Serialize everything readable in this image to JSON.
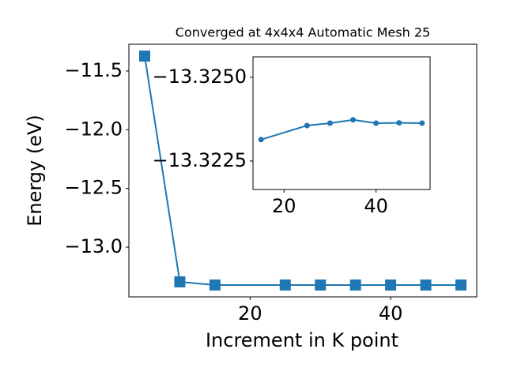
{
  "chart_data": [
    {
      "type": "line",
      "title": "Converged at 4x4x4 Automatic Mesh 25",
      "x_label": "Increment in K point",
      "y_label": "Energy (eV)",
      "x": [
        5,
        10,
        15,
        25,
        30,
        35,
        40,
        45,
        50
      ],
      "series": [
        {
          "color": "#1f77b4",
          "values": [
            -11.373,
            -13.295,
            -13.322,
            -13.322,
            -13.322,
            -13.322,
            -13.322,
            -13.322,
            -13.322
          ]
        }
      ],
      "xlim": [
        2.75,
        52.25
      ],
      "ylim": [
        -13.423,
        -11.272
      ],
      "xticks": [
        20,
        40
      ],
      "yticks": [
        {
          "value": -11.5,
          "label": "−11.5"
        },
        {
          "value": -12.0,
          "label": "−12.0"
        },
        {
          "value": -12.5,
          "label": "−12.5"
        },
        {
          "value": -13.0,
          "label": "−13.0"
        }
      ]
    },
    {
      "type": "line",
      "x": [
        15,
        25,
        30,
        35,
        40,
        45,
        50
      ],
      "series": [
        {
          "color": "#1f77b4",
          "values": [
            -13.32314,
            -13.32356,
            -13.32363,
            -13.32373,
            -13.32363,
            -13.32364,
            -13.32363
          ]
        }
      ],
      "xlim": [
        13.25,
        51.75
      ],
      "ylim": [
        -13.32165,
        -13.32561
      ],
      "xticks": [
        20,
        40
      ],
      "yticks": [
        {
          "value": -13.325,
          "label": "−13.3250"
        },
        {
          "value": -13.3225,
          "label": "−13.3225"
        }
      ]
    }
  ]
}
